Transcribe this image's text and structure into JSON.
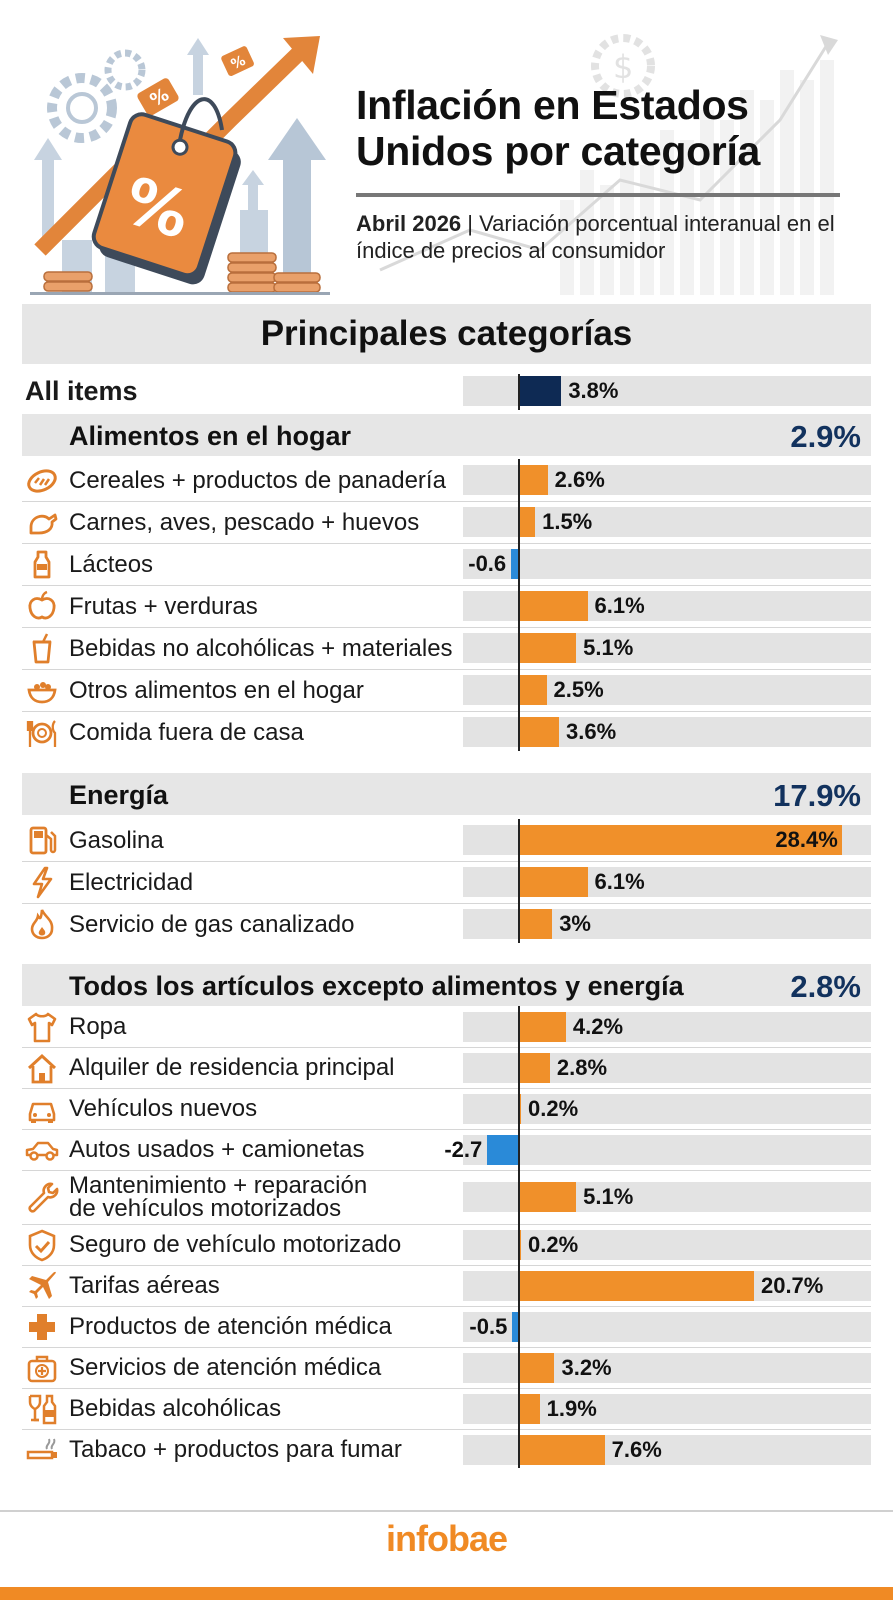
{
  "header": {
    "title": "Inflación en Estados Unidos por categoría",
    "subtitle_bold": "Abril 2026",
    "subtitle_rest": " | Variación porcentual interanual en el índice de precios al consumidor",
    "section_title": "Principales categorías"
  },
  "footer": {
    "logo": "infobae"
  },
  "colors": {
    "positive": "#f0902a",
    "negative": "#2a8ad8",
    "headline": "#0e2a54",
    "group_value": "#12325e"
  },
  "chart_data": {
    "type": "bar",
    "orientation": "horizontal",
    "title": "Principales categorías",
    "xlim": [
      -2.7,
      28.4
    ],
    "all_items": {
      "label": "All items",
      "value": 3.8,
      "value_label": "3.8%"
    },
    "groups": [
      {
        "name": "Alimentos en el hogar",
        "total_label": "2.9%",
        "total": 2.9,
        "items": [
          {
            "label": "Cereales + productos de panadería",
            "value": 2.6,
            "value_label": "2.6%",
            "icon": "bread-icon"
          },
          {
            "label": "Carnes, aves, pescado + huevos",
            "value": 1.5,
            "value_label": "1.5%",
            "icon": "chicken-icon"
          },
          {
            "label": "Lácteos",
            "value": -0.6,
            "value_label": "-0.6",
            "icon": "milk-bottle-icon"
          },
          {
            "label": "Frutas + verduras",
            "value": 6.1,
            "value_label": "6.1%",
            "icon": "apple-icon"
          },
          {
            "label": "Bebidas no alcohólicas + materiales",
            "value": 5.1,
            "value_label": "5.1%",
            "icon": "drink-cup-icon"
          },
          {
            "label": "Otros alimentos en el hogar",
            "value": 2.5,
            "value_label": "2.5%",
            "icon": "bowl-icon"
          },
          {
            "label": "Comida fuera de casa",
            "value": 3.6,
            "value_label": "3.6%",
            "icon": "plate-cutlery-icon"
          }
        ]
      },
      {
        "name": "Energía",
        "total_label": "17.9%",
        "total": 17.9,
        "items": [
          {
            "label": "Gasolina",
            "value": 28.4,
            "value_label": "28.4%",
            "icon": "fuel-pump-icon"
          },
          {
            "label": "Electricidad",
            "value": 6.1,
            "value_label": "6.1%",
            "icon": "lightning-icon"
          },
          {
            "label": "Servicio de gas canalizado",
            "value": 3.0,
            "value_label": "3%",
            "icon": "flame-icon"
          }
        ]
      },
      {
        "name": "Todos los artículos excepto alimentos y energía",
        "total_label": "2.8%",
        "total": 2.8,
        "items": [
          {
            "label": "Ropa",
            "value": 4.2,
            "value_label": "4.2%",
            "icon": "shirt-icon"
          },
          {
            "label": "Alquiler de residencia principal",
            "value": 2.8,
            "value_label": "2.8%",
            "icon": "house-icon"
          },
          {
            "label": "Vehículos nuevos",
            "value": 0.2,
            "value_label": "0.2%",
            "icon": "car-front-icon"
          },
          {
            "label": "Autos usados + camionetas",
            "value": -2.7,
            "value_label": "-2.7",
            "icon": "car-side-icon"
          },
          {
            "label": "Mantenimiento + reparación",
            "label2": "de vehículos motorizados",
            "value": 5.1,
            "value_label": "5.1%",
            "icon": "wrench-icon"
          },
          {
            "label": "Seguro de vehículo motorizado",
            "value": 0.2,
            "value_label": "0.2%",
            "icon": "shield-check-icon"
          },
          {
            "label": "Tarifas aéreas",
            "value": 20.7,
            "value_label": "20.7%",
            "icon": "airplane-icon"
          },
          {
            "label": "Productos de atención médica",
            "value": -0.5,
            "value_label": "-0.5",
            "icon": "medical-cross-icon"
          },
          {
            "label": "Servicios de atención médica",
            "value": 3.2,
            "value_label": "3.2%",
            "icon": "medical-kit-icon"
          },
          {
            "label": "Bebidas alcohólicas",
            "value": 1.9,
            "value_label": "1.9%",
            "icon": "wine-icon"
          },
          {
            "label": "Tabaco + productos para fumar",
            "value": 7.6,
            "value_label": "7.6%",
            "icon": "cigarette-icon"
          }
        ]
      }
    ]
  }
}
